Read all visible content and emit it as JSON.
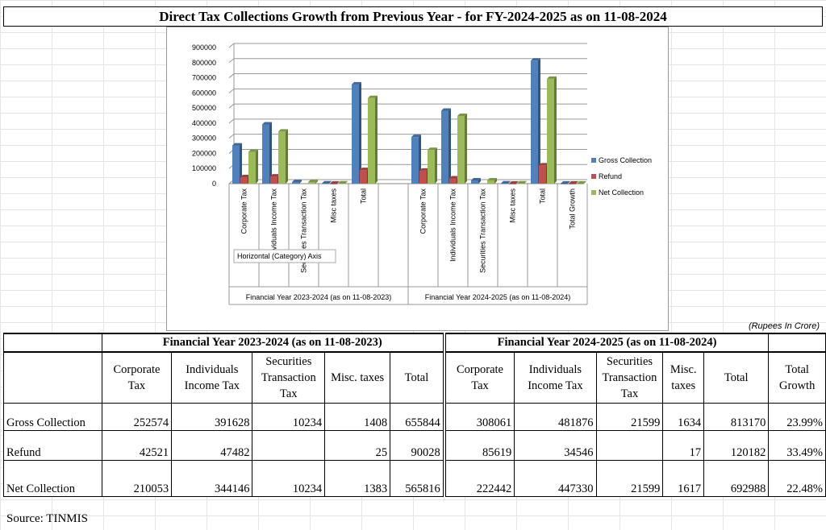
{
  "title": "Direct Tax Collections Growth from Previous Year - for FY-2024-2025 as on 11-08-2024",
  "units_note": "(Rupees In Crore)",
  "source": "Source: TINMIS",
  "chart_data": {
    "type": "bar",
    "subtype": "3d-clustered-column",
    "groups": [
      "Financial Year 2023-2024 (as on 11-08-2023)",
      "Financial Year 2024-2025 (as on 11-08-2024)"
    ],
    "categories": [
      [
        "Corporate Tax",
        "Individuals Income Tax",
        "Securities Transaction Tax",
        "Misc taxes",
        "Total",
        ""
      ],
      [
        "Corporate Tax",
        "Individuals Income Tax",
        "Securities Transaction Tax",
        "Misc taxes",
        "Total",
        "Total Growth"
      ]
    ],
    "series": [
      {
        "name": "Gross Collection",
        "color": "#4f81bd",
        "values": [
          [
            252574,
            391628,
            10234,
            1408,
            655844,
            null
          ],
          [
            308061,
            481876,
            21599,
            1634,
            813170,
            23.99
          ]
        ]
      },
      {
        "name": "Refund",
        "color": "#c0504d",
        "values": [
          [
            42521,
            47482,
            null,
            25,
            90028,
            null
          ],
          [
            85619,
            34546,
            null,
            17,
            120182,
            33.49
          ]
        ]
      },
      {
        "name": "Net Collection",
        "color": "#9bbb59",
        "values": [
          [
            210053,
            344146,
            10234,
            1383,
            565816,
            null
          ],
          [
            222442,
            447330,
            21599,
            1617,
            692988,
            22.48
          ]
        ]
      }
    ],
    "yticks": [
      "0",
      "100000",
      "200000",
      "300000",
      "400000",
      "500000",
      "600000",
      "700000",
      "800000",
      "900000"
    ],
    "ylim": [
      0,
      900000
    ],
    "grid": true,
    "legend": "right",
    "tooltip": "Horizontal (Category) Axis"
  },
  "table": {
    "group_headers": [
      "Financial Year 2023-2024 (as on 11-08-2023)",
      "Financial Year 2024-2025 (as on 11-08-2024)"
    ],
    "col_headers": [
      [
        "Corporate",
        "Tax"
      ],
      [
        "Individuals",
        "Income Tax"
      ],
      [
        "Securities",
        "Transaction",
        "Tax"
      ],
      [
        "Misc. taxes"
      ],
      [
        "Total"
      ],
      [
        "Corporate",
        "Tax"
      ],
      [
        "Individuals",
        "Income Tax"
      ],
      [
        "Securities",
        "Transaction",
        "Tax"
      ],
      [
        "Misc.",
        "taxes"
      ],
      [
        "Total"
      ],
      [
        "Total",
        "Growth"
      ]
    ],
    "rows": [
      {
        "label": "Gross Collection",
        "cells": [
          "252574",
          "391628",
          "10234",
          "1408",
          "655844",
          "308061",
          "481876",
          "21599",
          "1634",
          "813170",
          "23.99%"
        ]
      },
      {
        "label": "Refund",
        "cells": [
          "42521",
          "47482",
          "",
          "25",
          "90028",
          "85619",
          "34546",
          "",
          "17",
          "120182",
          "33.49%"
        ]
      },
      {
        "label": "Net Collection",
        "cells": [
          "210053",
          "344146",
          "10234",
          "1383",
          "565816",
          "222442",
          "447330",
          "21599",
          "1617",
          "692988",
          "22.48%"
        ]
      }
    ]
  }
}
